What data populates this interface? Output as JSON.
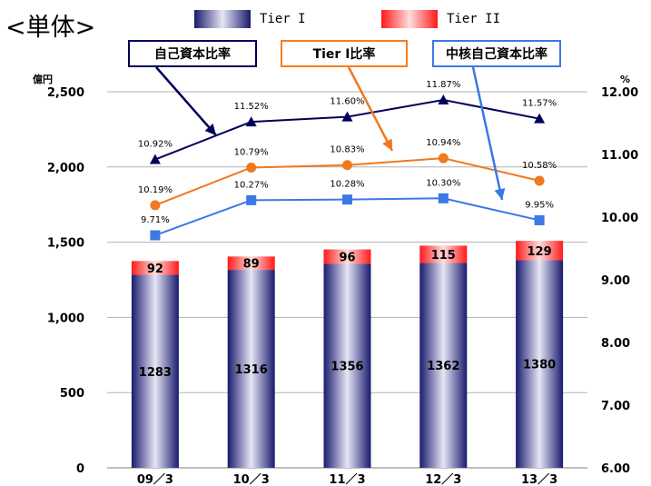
{
  "title": "<単体>",
  "legend": [
    {
      "label": "Tier I",
      "gradient": [
        "#1a1a6e",
        "#e6e6f5"
      ]
    },
    {
      "label": "Tier II",
      "gradient": [
        "#ff1a1a",
        "#ffdcdc"
      ]
    }
  ],
  "callouts": [
    {
      "label": "自己資本比率",
      "color": "#00005a"
    },
    {
      "label": "Tier Ⅰ比率",
      "color": "#ff7a1a"
    },
    {
      "label": "中核自己資本比率",
      "color": "#3c78e6"
    }
  ],
  "chart_data": {
    "type": "bar",
    "categories": [
      "09/3",
      "10/3",
      "11/3",
      "12/3",
      "13/3"
    ],
    "left_axis": {
      "unit": "億円",
      "ylim": [
        0,
        2500
      ],
      "ticks": [
        0,
        500,
        1000,
        1500,
        2000,
        2500
      ],
      "tick_labels": [
        "0",
        "500",
        "1,000",
        "1,500",
        "2,000",
        "2,500"
      ]
    },
    "right_axis": {
      "unit": "%",
      "ylim": [
        6,
        12
      ],
      "ticks": [
        6,
        7,
        8,
        9,
        10,
        11,
        12
      ],
      "tick_labels": [
        "6.00",
        "7.00",
        "8.00",
        "9.00",
        "10.00",
        "11.00",
        "12.00"
      ]
    },
    "bar_series": [
      {
        "name": "Tier I",
        "values": [
          1283,
          1316,
          1356,
          1362,
          1380
        ],
        "labels": [
          "1283",
          "1316",
          "1356",
          "1362",
          "1380"
        ]
      },
      {
        "name": "Tier II",
        "values": [
          92,
          89,
          96,
          115,
          129
        ],
        "labels": [
          "92",
          "89",
          "96",
          "115",
          "129"
        ]
      }
    ],
    "line_series": [
      {
        "name": "自己資本比率",
        "color": "#00005a",
        "marker": "triangle",
        "values": [
          10.92,
          11.52,
          11.6,
          11.87,
          11.57
        ],
        "labels": [
          "10.92%",
          "11.52%",
          "11.60%",
          "11.87%",
          "11.57%"
        ]
      },
      {
        "name": "Tier Ⅰ比率",
        "color": "#f07820",
        "marker": "circle",
        "values": [
          10.19,
          10.79,
          10.83,
          10.94,
          10.58
        ],
        "labels": [
          "10.19%",
          "10.79%",
          "10.83%",
          "10.94%",
          "10.58%"
        ]
      },
      {
        "name": "中核自己資本比率",
        "color": "#3c78e6",
        "marker": "square",
        "values": [
          9.71,
          10.27,
          10.28,
          10.3,
          9.95
        ],
        "labels": [
          "9.71%",
          "10.27%",
          "10.28%",
          "10.30%",
          "9.95%"
        ]
      }
    ],
    "grid": true,
    "legend_position": "top"
  }
}
